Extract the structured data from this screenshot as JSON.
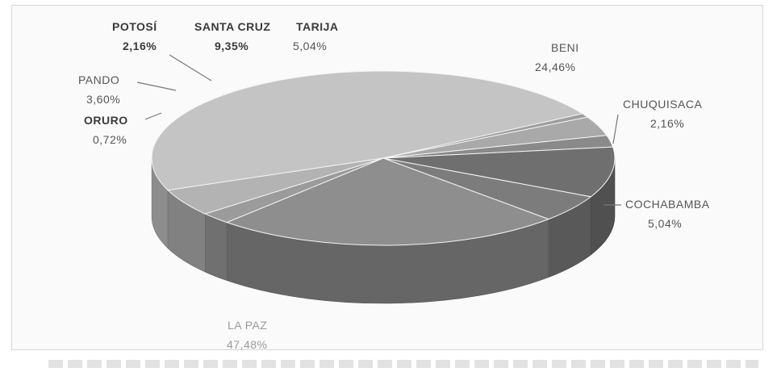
{
  "chart_data": {
    "type": "pie",
    "style": "3d",
    "title": "",
    "slices": [
      {
        "label": "LA PAZ",
        "value_text": "47,48%",
        "value": 47.48,
        "color": "#c4c4c4"
      },
      {
        "label": "ORURO",
        "value_text": "0,72%",
        "value": 0.72,
        "color": "#9e9e9e"
      },
      {
        "label": "PANDO",
        "value_text": "3,60%",
        "value": 3.6,
        "color": "#a9a9a9"
      },
      {
        "label": "POTOSÍ",
        "value_text": "2,16%",
        "value": 2.16,
        "color": "#8a8a8a"
      },
      {
        "label": "SANTA CRUZ",
        "value_text": "9,35%",
        "value": 9.35,
        "color": "#6f6f6f"
      },
      {
        "label": "TARIJA",
        "value_text": "5,04%",
        "value": 5.04,
        "color": "#7c7c7c"
      },
      {
        "label": "BENI",
        "value_text": "24,46%",
        "value": 24.46,
        "color": "#8e8e8e"
      },
      {
        "label": "CHUQUISACA",
        "value_text": "2,16%",
        "value": 2.16,
        "color": "#9b9b9b"
      },
      {
        "label": "COCHABAMBA",
        "value_text": "5,04%",
        "value": 5.04,
        "color": "#b3b3b3"
      }
    ]
  }
}
